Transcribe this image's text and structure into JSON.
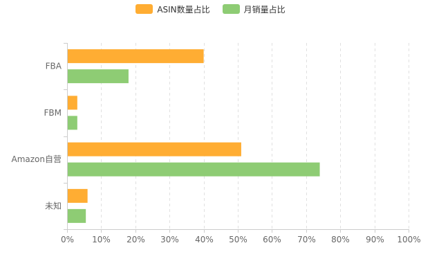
{
  "chart_data": {
    "type": "bar",
    "orientation": "horizontal",
    "categories": [
      "FBA",
      "FBM",
      "Amazon自营",
      "未知"
    ],
    "series": [
      {
        "name": "ASIN数量占比",
        "color": "#FFAD33",
        "values": [
          40,
          3,
          51,
          6
        ]
      },
      {
        "name": "月销量占比",
        "color": "#8ECC74",
        "values": [
          18,
          3,
          74,
          5.5
        ]
      }
    ],
    "xlim": [
      0,
      100
    ],
    "xticks": [
      "0%",
      "10%",
      "20%",
      "30%",
      "40%",
      "50%",
      "60%",
      "70%",
      "80%",
      "90%",
      "100%"
    ],
    "grid": "vertical dashed",
    "legend_position": "top-center",
    "title": "",
    "xlabel": "",
    "ylabel": ""
  }
}
